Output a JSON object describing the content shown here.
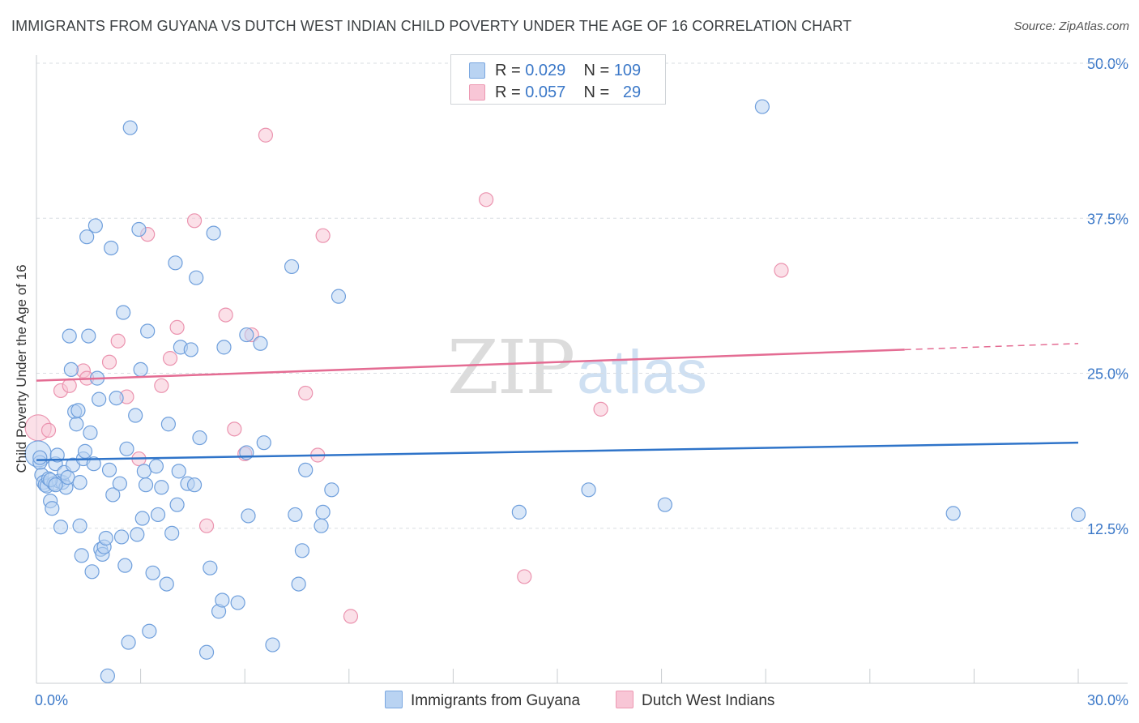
{
  "title": "IMMIGRANTS FROM GUYANA VS DUTCH WEST INDIAN CHILD POVERTY UNDER THE AGE OF 16 CORRELATION CHART",
  "source": "Source: ZipAtlas.com",
  "watermark": {
    "zip": "ZIP",
    "atlas": "atlas"
  },
  "legend": {
    "r_label": "R =",
    "n_label": "N =",
    "series": [
      {
        "r": "0.029",
        "n": "109"
      },
      {
        "r": "0.057",
        "n": "29"
      }
    ]
  },
  "colors": {
    "blue_fill": "#b9d3f2",
    "blue_stroke": "#6f9fdc",
    "blue_line": "#2f74c9",
    "pink_fill": "#f8c6d6",
    "pink_stroke": "#eb93af",
    "pink_line": "#e46c93",
    "grid": "#d9dde2",
    "tick_label": "#3b78c8"
  },
  "chart_data": {
    "type": "scatter",
    "title": "IMMIGRANTS FROM GUYANA VS DUTCH WEST INDIAN CHILD POVERTY UNDER THE AGE OF 16 CORRELATION CHART",
    "xlabel": "",
    "ylabel": "Child Poverty Under the Age of 16",
    "xlim": [
      0,
      30
    ],
    "ylim": [
      0,
      50
    ],
    "x_tick_labels": [
      "0.0%",
      "30.0%"
    ],
    "y_ticks": [
      12.5,
      25.0,
      37.5,
      50.0
    ],
    "y_tick_labels": [
      "12.5%",
      "25.0%",
      "37.5%",
      "50.0%"
    ],
    "grid": true,
    "legend_position": "top-center",
    "series": [
      {
        "name": "Immigrants from Guyana",
        "color": "#6f9fdc",
        "trend": [
          [
            0,
            18.0
          ],
          [
            30,
            19.4
          ]
        ],
        "points": [
          [
            0.05,
            18.5
          ],
          [
            0.1,
            17.8
          ],
          [
            0.15,
            16.8
          ],
          [
            0.2,
            16.2
          ],
          [
            0.25,
            16.0
          ],
          [
            0.3,
            15.9
          ],
          [
            0.35,
            16.5
          ],
          [
            0.4,
            14.7
          ],
          [
            0.45,
            14.1
          ],
          [
            0.5,
            16.1
          ],
          [
            0.55,
            17.7
          ],
          [
            0.6,
            18.4
          ],
          [
            0.65,
            16.3
          ],
          [
            0.7,
            12.6
          ],
          [
            0.75,
            16.2
          ],
          [
            0.8,
            17.0
          ],
          [
            0.85,
            15.8
          ],
          [
            0.9,
            16.6
          ],
          [
            0.95,
            28.0
          ],
          [
            1.0,
            25.3
          ],
          [
            1.05,
            17.6
          ],
          [
            1.1,
            21.9
          ],
          [
            1.15,
            20.9
          ],
          [
            1.2,
            22.0
          ],
          [
            1.25,
            12.7
          ],
          [
            1.3,
            10.3
          ],
          [
            1.35,
            18.1
          ],
          [
            1.4,
            18.7
          ],
          [
            1.45,
            36.0
          ],
          [
            1.5,
            28.0
          ],
          [
            1.55,
            20.2
          ],
          [
            1.6,
            9.0
          ],
          [
            1.65,
            17.7
          ],
          [
            1.7,
            36.9
          ],
          [
            1.75,
            24.6
          ],
          [
            1.8,
            22.9
          ],
          [
            1.85,
            10.8
          ],
          [
            1.9,
            10.4
          ],
          [
            1.95,
            11.0
          ],
          [
            2.0,
            11.7
          ],
          [
            2.05,
            0.6
          ],
          [
            2.1,
            17.2
          ],
          [
            2.15,
            35.1
          ],
          [
            2.2,
            15.2
          ],
          [
            2.3,
            23.0
          ],
          [
            2.4,
            16.1
          ],
          [
            2.45,
            11.8
          ],
          [
            2.5,
            29.9
          ],
          [
            2.55,
            9.5
          ],
          [
            2.6,
            18.9
          ],
          [
            2.65,
            3.3
          ],
          [
            2.7,
            44.8
          ],
          [
            2.85,
            21.6
          ],
          [
            2.9,
            12.0
          ],
          [
            2.95,
            36.6
          ],
          [
            3.0,
            25.3
          ],
          [
            3.05,
            13.3
          ],
          [
            3.1,
            17.1
          ],
          [
            3.15,
            16.0
          ],
          [
            3.2,
            28.4
          ],
          [
            3.25,
            4.2
          ],
          [
            3.35,
            8.9
          ],
          [
            3.45,
            17.5
          ],
          [
            3.5,
            13.6
          ],
          [
            3.6,
            15.8
          ],
          [
            3.75,
            8.0
          ],
          [
            3.8,
            20.9
          ],
          [
            3.9,
            12.1
          ],
          [
            4.0,
            33.9
          ],
          [
            4.05,
            14.4
          ],
          [
            4.1,
            17.1
          ],
          [
            4.15,
            27.1
          ],
          [
            4.35,
            16.1
          ],
          [
            4.45,
            26.9
          ],
          [
            4.55,
            16.0
          ],
          [
            4.6,
            32.7
          ],
          [
            4.7,
            19.8
          ],
          [
            4.9,
            2.5
          ],
          [
            5.0,
            9.3
          ],
          [
            5.1,
            36.3
          ],
          [
            5.25,
            5.8
          ],
          [
            5.35,
            6.7
          ],
          [
            5.4,
            27.1
          ],
          [
            5.8,
            6.5
          ],
          [
            6.05,
            28.1
          ],
          [
            6.1,
            13.5
          ],
          [
            6.05,
            18.6
          ],
          [
            6.45,
            27.4
          ],
          [
            6.55,
            19.4
          ],
          [
            6.8,
            3.1
          ],
          [
            7.35,
            33.6
          ],
          [
            7.45,
            13.6
          ],
          [
            7.55,
            8.0
          ],
          [
            7.65,
            10.7
          ],
          [
            7.75,
            17.2
          ],
          [
            8.2,
            12.7
          ],
          [
            8.25,
            13.8
          ],
          [
            8.5,
            15.6
          ],
          [
            8.7,
            31.2
          ],
          [
            13.9,
            13.8
          ],
          [
            15.9,
            15.6
          ],
          [
            18.1,
            14.4
          ],
          [
            20.9,
            46.5
          ],
          [
            26.4,
            13.7
          ],
          [
            30.0,
            13.6
          ],
          [
            0.1,
            18.2
          ],
          [
            0.4,
            16.4
          ],
          [
            0.55,
            16.0
          ],
          [
            1.25,
            16.2
          ]
        ]
      },
      {
        "name": "Dutch West Indians",
        "color": "#eb93af",
        "trend": [
          [
            0,
            24.4
          ],
          [
            25,
            26.9
          ]
        ],
        "trend_extension": [
          [
            25,
            26.9
          ],
          [
            30,
            27.4
          ]
        ],
        "points": [
          [
            0.05,
            20.6
          ],
          [
            0.35,
            20.4
          ],
          [
            0.7,
            23.6
          ],
          [
            0.95,
            24.0
          ],
          [
            1.35,
            25.2
          ],
          [
            1.45,
            24.6
          ],
          [
            2.1,
            25.9
          ],
          [
            2.35,
            27.6
          ],
          [
            2.6,
            23.1
          ],
          [
            2.95,
            18.1
          ],
          [
            3.2,
            36.2
          ],
          [
            3.6,
            24.0
          ],
          [
            3.85,
            26.2
          ],
          [
            4.05,
            28.7
          ],
          [
            4.55,
            37.3
          ],
          [
            4.9,
            12.7
          ],
          [
            5.45,
            29.7
          ],
          [
            5.7,
            20.5
          ],
          [
            6.0,
            18.5
          ],
          [
            6.2,
            28.1
          ],
          [
            6.6,
            44.2
          ],
          [
            7.75,
            23.4
          ],
          [
            8.1,
            18.4
          ],
          [
            8.25,
            36.1
          ],
          [
            9.05,
            5.4
          ],
          [
            12.95,
            39.0
          ],
          [
            14.05,
            8.6
          ],
          [
            16.25,
            22.1
          ],
          [
            21.45,
            33.3
          ]
        ]
      }
    ]
  },
  "bottom_legend": [
    "Immigrants from Guyana",
    "Dutch West Indians"
  ]
}
